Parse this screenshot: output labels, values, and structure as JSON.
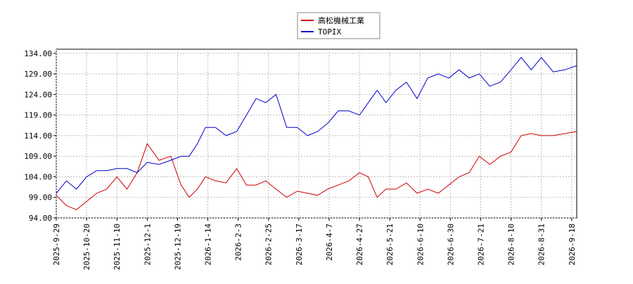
{
  "chart_data": {
    "type": "line",
    "x": [
      "2025-9-29",
      "2025-10-6",
      "2025-10-13",
      "2025-10-20",
      "2025-10-27",
      "2025-11-3",
      "2025-11-10",
      "2025-11-17",
      "2025-11-24",
      "2025-12-1",
      "2025-12-8",
      "2025-12-15",
      "2025-12-22",
      "2025-12-29",
      "2026-1-5",
      "2026-1-12",
      "2026-1-19",
      "2026-1-26",
      "2026-2-2",
      "2026-2-9",
      "2026-2-16",
      "2026-2-23",
      "2026-3-2",
      "2026-3-9",
      "2026-3-16",
      "2026-3-23",
      "2026-3-30",
      "2026-4-6",
      "2026-4-13",
      "2026-4-20",
      "2026-4-27",
      "2026-5-4",
      "2026-5-11",
      "2026-5-18",
      "2026-5-25",
      "2026-6-1",
      "2026-6-8",
      "2026-6-15",
      "2026-6-22",
      "2026-6-29",
      "2026-7-6",
      "2026-7-13",
      "2026-7-20",
      "2026-7-27",
      "2026-8-3",
      "2026-8-10",
      "2026-8-17",
      "2026-8-24",
      "2026-8-31",
      "2026-9-7",
      "2026-9-14",
      "2026-9-21"
    ],
    "series": [
      {
        "name": "高松機械工業",
        "color": "#cc0000",
        "values": [
          99.5,
          97,
          96,
          98,
          100,
          101,
          104,
          101,
          105,
          112,
          108,
          109,
          102,
          99,
          101,
          104,
          103,
          102.5,
          106,
          102,
          102,
          103,
          101,
          99,
          100.5,
          100,
          99.5,
          101,
          102,
          103,
          105,
          104,
          99,
          101,
          101,
          102.5,
          100,
          101,
          100,
          102,
          104,
          105,
          109,
          107,
          109,
          110,
          114,
          114.5,
          114,
          114,
          114.5,
          115
        ]
      },
      {
        "name": "TOPIX",
        "color": "#0000cc",
        "values": [
          100,
          103,
          101,
          104,
          105.5,
          105.5,
          106,
          106,
          105,
          107.5,
          107,
          108,
          109,
          109,
          112,
          116,
          116,
          114,
          115,
          119,
          123,
          122,
          124,
          116,
          116,
          114,
          115,
          117,
          120,
          120,
          119,
          122,
          125,
          122,
          125,
          127,
          123,
          128,
          129,
          128,
          130,
          128,
          129,
          126,
          127,
          130,
          133,
          130,
          133,
          129.5,
          130,
          131
        ]
      }
    ],
    "xlim": [
      "2025-9-29",
      "2026-9-21"
    ],
    "xticks": [
      "2025-9-29",
      "2025-10-20",
      "2025-11-10",
      "2025-12-1",
      "2025-12-19",
      "2026-1-14",
      "2026-2-3",
      "2026-2-25",
      "2026-3-17",
      "2026-4-7",
      "2026-4-27",
      "2026-5-21",
      "2026-6-10",
      "2026-6-30",
      "2026-7-21",
      "2026-8-10",
      "2026-8-31",
      "2026-9-18"
    ],
    "ylim": [
      94,
      135
    ],
    "yticks": [
      {
        "value": 94,
        "label": "94.00"
      },
      {
        "value": 99,
        "label": "99.00"
      },
      {
        "value": 104,
        "label": "104.00"
      },
      {
        "value": 109,
        "label": "109.00"
      },
      {
        "value": 114,
        "label": "114.00"
      },
      {
        "value": 119,
        "label": "119.00"
      },
      {
        "value": 124,
        "label": "124.00"
      },
      {
        "value": 129,
        "label": "129.00"
      },
      {
        "value": 134,
        "label": "134.00"
      }
    ],
    "grid": true,
    "legend": "top"
  }
}
